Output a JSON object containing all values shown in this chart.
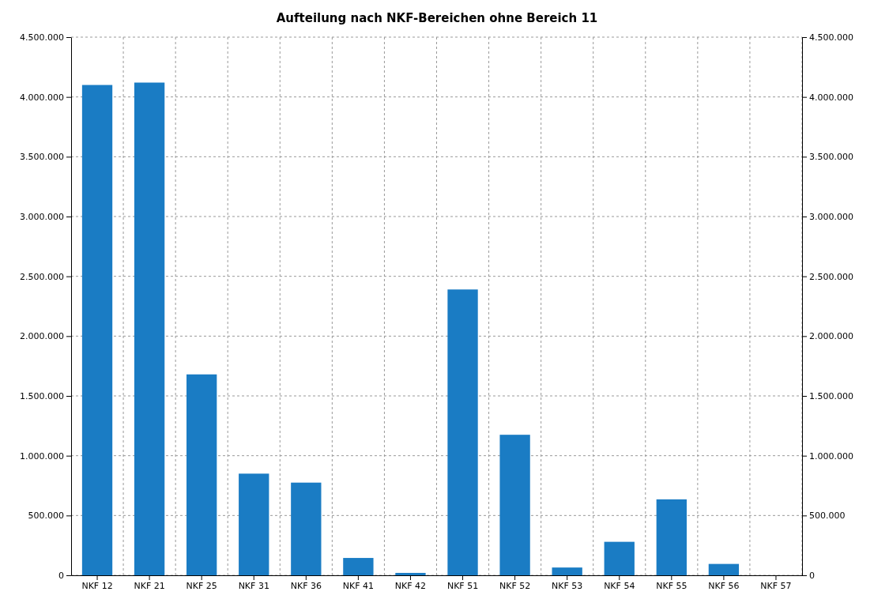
{
  "chart_data": {
    "type": "bar",
    "title": "Aufteilung nach NKF-Bereichen ohne Bereich 11",
    "categories": [
      "NKF 12",
      "NKF 21",
      "NKF 25",
      "NKF 31",
      "NKF 36",
      "NKF 41",
      "NKF 42",
      "NKF 51",
      "NKF 52",
      "NKF 53",
      "NKF 54",
      "NKF 55",
      "NKF 56",
      "NKF 57"
    ],
    "values": [
      4100000,
      4120000,
      1680000,
      850000,
      775000,
      145000,
      20000,
      2390000,
      1175000,
      65000,
      280000,
      635000,
      95000,
      0
    ],
    "color": "#1a7cc4",
    "ylim": [
      0,
      4500000
    ],
    "yticks": [
      0,
      {
        "value": 500000,
        "label": "500.000"
      },
      {
        "value": 1000000,
        "label": "1.000.000"
      },
      {
        "value": 1500000,
        "label": "1.500.000"
      },
      {
        "value": 2000000,
        "label": "2.000.000"
      },
      {
        "value": 2500000,
        "label": "2.500.000"
      },
      {
        "value": 3000000,
        "label": "3.000.000"
      },
      {
        "value": 3500000,
        "label": "3.500.000"
      },
      {
        "value": 4000000,
        "label": "4.000.000"
      },
      {
        "value": 4500000,
        "label": "4.500.000"
      }
    ],
    "y2lim": [
      0,
      4500000
    ],
    "y2ticks": [
      0,
      {
        "value": 500000,
        "label": "500.000"
      },
      {
        "value": 1000000,
        "label": "1.000.000"
      },
      {
        "value": 1500000,
        "label": "1.500.000"
      },
      {
        "value": 2000000,
        "label": "2.000.000"
      },
      {
        "value": 2500000,
        "label": "2.500.000"
      },
      {
        "value": 3000000,
        "label": "3.000.000"
      },
      {
        "value": 3500000,
        "label": "3.500.000"
      },
      {
        "value": 4000000,
        "label": "4.000.000"
      },
      {
        "value": 4500000,
        "label": "4.500.000"
      }
    ],
    "grid": true
  }
}
